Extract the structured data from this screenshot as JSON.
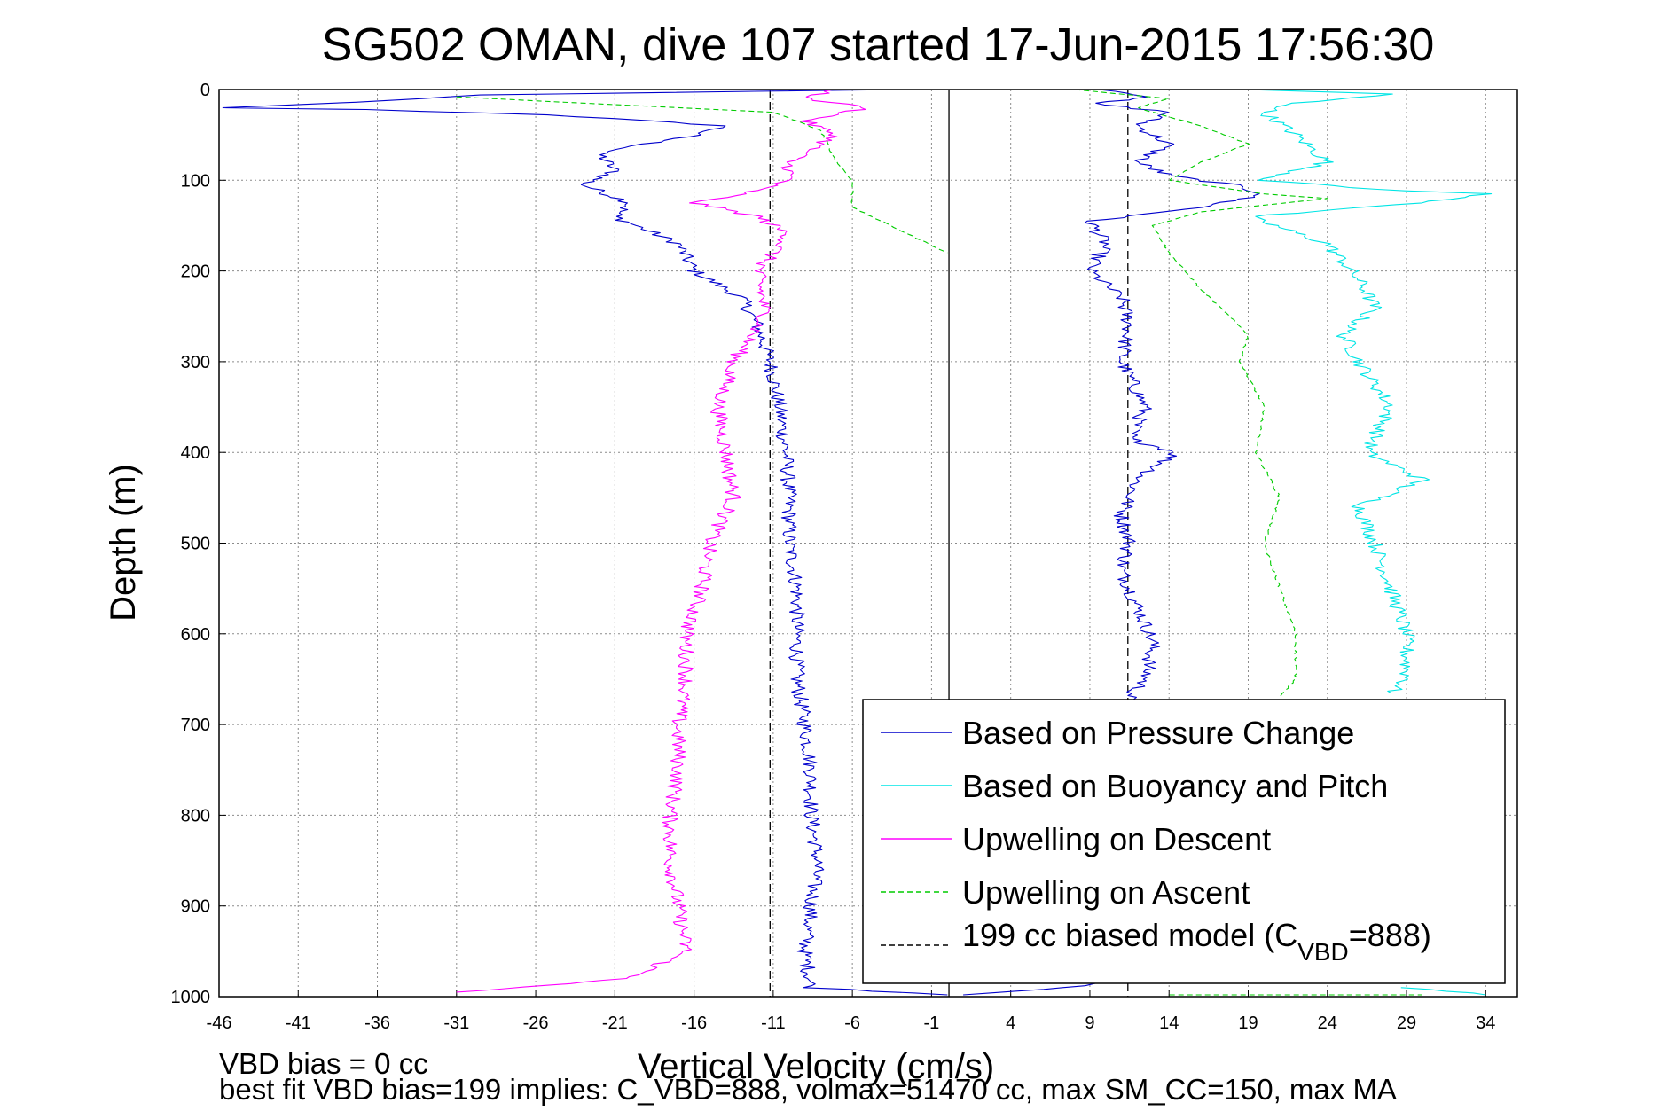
{
  "chart_data": {
    "type": "line",
    "title": "SG502 OMAN, dive 107 started 17-Jun-2015 17:56:30",
    "xlabel": "Vertical Velocity (cm/s)",
    "ylabel": "Depth (m)",
    "xlim": [
      -46,
      36
    ],
    "ylim": [
      0,
      1000
    ],
    "y_reversed": true,
    "grid": true,
    "legend_position": "bottom-right",
    "xticks": [
      -46,
      -41,
      -36,
      -31,
      -26,
      -21,
      -16,
      -11,
      -6,
      -1,
      4,
      9,
      14,
      19,
      24,
      29,
      34
    ],
    "yticks": [
      0,
      100,
      200,
      300,
      400,
      500,
      600,
      700,
      800,
      900,
      1000
    ],
    "reference_lines": [
      {
        "x": 0.1,
        "style": "solid",
        "color": "#000000"
      },
      {
        "x": -11.2,
        "style": "dashed",
        "color": "#000000"
      },
      {
        "x": 11.4,
        "style": "dashed",
        "color": "#000000"
      }
    ],
    "series": [
      {
        "name": "Based on Pressure Change",
        "color": "#0000cc",
        "style": "solid",
        "segments": [
          [
            [
              -3,
              0
            ],
            [
              -30,
              6
            ],
            [
              -35,
              12
            ],
            [
              -46,
              20
            ],
            [
              -37,
              22
            ],
            [
              -25,
              28
            ],
            [
              -14,
              40
            ],
            [
              -16,
              50
            ],
            [
              -22,
              70
            ],
            [
              -21,
              90
            ],
            [
              -23,
              105
            ],
            [
              -20,
              125
            ],
            [
              -21,
              140
            ],
            [
              -17,
              170
            ],
            [
              -16,
              200
            ],
            [
              -13,
              230
            ],
            [
              -12,
              260
            ],
            [
              -11.2,
              300
            ],
            [
              -10.6,
              350
            ],
            [
              -10.2,
              400
            ],
            [
              -10,
              450
            ],
            [
              -10,
              500
            ],
            [
              -9.5,
              550
            ],
            [
              -9.5,
              600
            ],
            [
              -9.5,
              650
            ],
            [
              -9,
              700
            ],
            [
              -8.6,
              750
            ],
            [
              -8.6,
              800
            ],
            [
              -8.2,
              850
            ],
            [
              -8.6,
              900
            ],
            [
              -9,
              950
            ],
            [
              -8.6,
              990
            ],
            [
              0,
              998
            ]
          ],
          [
            [
              10,
              0
            ],
            [
              13,
              8
            ],
            [
              9,
              15
            ],
            [
              14,
              25
            ],
            [
              12,
              40
            ],
            [
              14,
              60
            ],
            [
              12,
              80
            ],
            [
              14,
              95
            ],
            [
              18,
              105
            ],
            [
              20,
              115
            ],
            [
              16,
              130
            ],
            [
              9,
              145
            ],
            [
              10,
              170
            ],
            [
              9,
              200
            ],
            [
              11,
              230
            ],
            [
              11.5,
              260
            ],
            [
              11,
              300
            ],
            [
              12.5,
              350
            ],
            [
              11.5,
              385
            ],
            [
              14.5,
              400
            ],
            [
              12,
              430
            ],
            [
              11,
              470
            ],
            [
              11.5,
              500
            ],
            [
              11,
              530
            ],
            [
              12,
              570
            ],
            [
              13,
              610
            ],
            [
              12.5,
              650
            ],
            [
              11.5,
              670
            ],
            [
              11.5,
              700
            ],
            [
              11.5,
              750
            ],
            [
              11.5,
              800
            ],
            [
              11.5,
              850
            ],
            [
              11,
              900
            ],
            [
              11,
              950
            ],
            [
              9,
              988
            ],
            [
              1,
              998
            ]
          ]
        ]
      },
      {
        "name": "Based on Buoyancy and Pitch",
        "color": "#00e5e5",
        "style": "solid",
        "segments": [
          [
            [
              19,
              0
            ],
            [
              28,
              5
            ],
            [
              22,
              15
            ],
            [
              20,
              25
            ],
            [
              22,
              50
            ],
            [
              24,
              80
            ],
            [
              20,
              100
            ],
            [
              27,
              110
            ],
            [
              34,
              115
            ],
            [
              30,
              125
            ],
            [
              19,
              140
            ],
            [
              24,
              170
            ],
            [
              26,
              210
            ],
            [
              27,
              240
            ],
            [
              25,
              270
            ],
            [
              26,
              300
            ],
            [
              28,
              350
            ],
            [
              26.5,
              400
            ],
            [
              30,
              430
            ],
            [
              26,
              460
            ],
            [
              27,
              500
            ],
            [
              28,
              550
            ],
            [
              29,
              600
            ],
            [
              29,
              650
            ],
            [
              28,
              665
            ]
          ],
          [
            [
              29,
              990
            ],
            [
              34,
              998
            ]
          ]
        ]
      },
      {
        "name": "Upwelling on Descent",
        "color": "#ff00ff",
        "style": "solid",
        "segments": [
          [
            [
              -7,
              0
            ],
            [
              -9,
              10
            ],
            [
              -5,
              20
            ],
            [
              -9,
              35
            ],
            [
              -7,
              50
            ],
            [
              -10,
              80
            ],
            [
              -10,
              100
            ],
            [
              -13,
              115
            ],
            [
              -16,
              125
            ],
            [
              -12,
              140
            ],
            [
              -10,
              160
            ],
            [
              -12,
              200
            ],
            [
              -11.5,
              250
            ],
            [
              -13.5,
              300
            ],
            [
              -14.5,
              350
            ],
            [
              -14,
              400
            ],
            [
              -13.5,
              450
            ],
            [
              -15,
              500
            ],
            [
              -15.5,
              550
            ],
            [
              -16.5,
              600
            ],
            [
              -16.5,
              650
            ],
            [
              -17,
              700
            ],
            [
              -17,
              750
            ],
            [
              -17.5,
              800
            ],
            [
              -17.5,
              850
            ],
            [
              -17,
              900
            ],
            [
              -16.5,
              950
            ],
            [
              -20,
              980
            ],
            [
              -31,
              995
            ]
          ]
        ]
      },
      {
        "name": "Upwelling on Ascent",
        "color": "#00cc00",
        "style": "dashed",
        "segments": [
          [
            [
              -31,
              8
            ],
            [
              -23,
              15
            ],
            [
              -11,
              25
            ],
            [
              -8,
              45
            ],
            [
              -7,
              80
            ],
            [
              -6,
              100
            ],
            [
              -6,
              130
            ],
            [
              0,
              180
            ]
          ],
          [
            [
              8,
              0
            ],
            [
              14,
              10
            ],
            [
              12,
              20
            ],
            [
              16,
              40
            ],
            [
              19,
              60
            ],
            [
              16,
              80
            ],
            [
              14,
              100
            ],
            [
              20,
              115
            ],
            [
              24,
              120
            ],
            [
              16,
              135
            ],
            [
              13,
              150
            ],
            [
              14,
              180
            ],
            [
              16,
              220
            ],
            [
              19,
              270
            ],
            [
              18.5,
              300
            ],
            [
              20,
              350
            ],
            [
              19.5,
              400
            ],
            [
              21,
              450
            ],
            [
              20,
              500
            ],
            [
              21,
              550
            ],
            [
              22,
              600
            ],
            [
              22,
              650
            ],
            [
              21,
              670
            ]
          ],
          [
            [
              14,
              998
            ],
            [
              30,
              998
            ]
          ]
        ]
      },
      {
        "name": "199 cc biased model (C_VBD=888)",
        "color": "#000000",
        "style": "dashed",
        "segments": []
      }
    ],
    "legend": {
      "entries": [
        {
          "label": "Based on Pressure Change",
          "color": "#0000cc",
          "style": "solid"
        },
        {
          "label": "Based on Buoyancy and Pitch",
          "color": "#00e5e5",
          "style": "solid"
        },
        {
          "label": "Upwelling on Descent",
          "color": "#ff00ff",
          "style": "solid"
        },
        {
          "label": "Upwelling on Ascent",
          "color": "#00cc00",
          "style": "dashed"
        },
        {
          "label": "199 cc biased model (C",
          "sub": "VBD",
          "suffix": "=888)",
          "color": "#000000",
          "style": "dashed"
        }
      ]
    },
    "annotations": [
      "VBD bias = 0 cc",
      "best fit VBD bias=199 implies: C_VBD=888, volmax=51470 cc, max SM_CC=150, max MA"
    ]
  }
}
